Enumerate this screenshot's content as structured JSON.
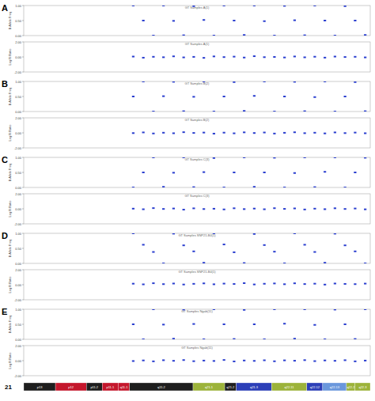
{
  "panel_labels": [
    "A",
    "B",
    "C",
    "D",
    "E"
  ],
  "chart_data": [
    {
      "type": "scatter",
      "title": "GT Samples A(1)",
      "y_label": "B Allele Freq",
      "color": "#2b3fcf",
      "marker": "dot",
      "xlim": [
        0,
        48.1
      ],
      "ylim": [
        0,
        1
      ],
      "yticks": [
        {
          "value": 0,
          "label": "0.00"
        },
        {
          "value": 0.5,
          "label": "0.50"
        },
        {
          "value": 1,
          "label": "1.00"
        }
      ],
      "tick_labels": "y",
      "x": [
        15.2,
        16.6,
        18.0,
        19.4,
        20.8,
        22.2,
        23.6,
        25.0,
        26.4,
        27.8,
        29.2,
        30.6,
        32.0,
        33.4,
        34.8,
        36.2,
        37.6,
        39.0,
        40.4,
        41.8,
        43.2,
        44.6,
        46.0,
        47.4
      ],
      "values": [
        1,
        0.5,
        0,
        1,
        0.49,
        0.01,
        0.98,
        0.52,
        0,
        1,
        0.5,
        0.02,
        1,
        0.48,
        0,
        0.99,
        0.51,
        0.01,
        1,
        0.5,
        0,
        0.98,
        0.5,
        0.02
      ]
    },
    {
      "type": "scatter",
      "title": "GT Samples A(1)",
      "y_label": "Log R Ratio",
      "color": "#2b3fcf",
      "marker": "dot",
      "xlim": [
        0,
        48.1
      ],
      "ylim": [
        -2,
        2
      ],
      "yticks": [
        {
          "value": -2,
          "label": "-2.00"
        },
        {
          "value": 0,
          "label": "0.00"
        },
        {
          "value": 2,
          "label": "2.00"
        }
      ],
      "tick_labels": "y",
      "x": [
        15.2,
        16.6,
        18.0,
        19.4,
        20.8,
        22.2,
        23.6,
        25.0,
        26.4,
        27.8,
        29.2,
        30.6,
        32.0,
        33.4,
        34.8,
        36.2,
        37.6,
        39.0,
        40.4,
        41.8,
        43.2,
        44.6,
        46.0,
        47.4
      ],
      "values": [
        0.05,
        -0.1,
        0.02,
        -0.04,
        0.08,
        -0.06,
        0.01,
        -0.12,
        0.07,
        -0.02,
        0.04,
        -0.08,
        0.1,
        -0.03,
        0,
        -0.07,
        0.06,
        -0.05,
        0.03,
        -0.09,
        0.05,
        -0.01,
        0.02,
        -0.06
      ]
    },
    {
      "type": "scatter",
      "title": "GT Samples B(2)",
      "y_label": "B Allele Freq",
      "color": "#2b3fcf",
      "marker": "dot",
      "xlim": [
        0,
        48.1
      ],
      "ylim": [
        0,
        1
      ],
      "yticks": [
        {
          "value": 0,
          "label": "0.00"
        },
        {
          "value": 0.5,
          "label": "0.50"
        },
        {
          "value": 1,
          "label": "1.00"
        }
      ],
      "tick_labels": "y",
      "x": [
        15.2,
        16.6,
        18.0,
        19.4,
        20.8,
        22.2,
        23.6,
        25.0,
        26.4,
        27.8,
        29.2,
        30.6,
        32.0,
        33.4,
        34.8,
        36.2,
        37.6,
        39.0,
        40.4,
        41.8,
        43.2,
        44.6,
        46.0,
        47.4
      ],
      "values": [
        0.5,
        1,
        0,
        0.51,
        0.99,
        0.01,
        0.49,
        1,
        0,
        0.5,
        0.98,
        0.02,
        0.52,
        1,
        0,
        0.5,
        0.99,
        0.01,
        0.48,
        1,
        0,
        0.5,
        0.98,
        0.01
      ]
    },
    {
      "type": "scatter",
      "title": "GT Samples B(2)",
      "y_label": "Log R Ratio",
      "color": "#2b3fcf",
      "marker": "dot",
      "xlim": [
        0,
        48.1
      ],
      "ylim": [
        -2,
        2
      ],
      "yticks": [
        {
          "value": -2,
          "label": "-2.00"
        },
        {
          "value": 0,
          "label": "0.00"
        },
        {
          "value": 2,
          "label": "2.00"
        }
      ],
      "tick_labels": "y",
      "x": [
        15.2,
        16.6,
        18.0,
        19.4,
        20.8,
        22.2,
        23.6,
        25.0,
        26.4,
        27.8,
        29.2,
        30.6,
        32.0,
        33.4,
        34.8,
        36.2,
        37.6,
        39.0,
        40.4,
        41.8,
        43.2,
        44.6,
        46.0,
        47.4
      ],
      "values": [
        -0.03,
        0.06,
        -0.08,
        0.02,
        -0.05,
        0.09,
        -0.01,
        0.04,
        -0.1,
        0.03,
        -0.06,
        0.07,
        -0.02,
        0.05,
        -0.09,
        0.01,
        0.08,
        -0.04,
        0.02,
        -0.07,
        0.06,
        -0.03,
        0.04,
        -0.05
      ]
    },
    {
      "type": "scatter",
      "title": "GT Samples C(3)",
      "y_label": "B Allele Freq",
      "color": "#2b3fcf",
      "marker": "dot",
      "xlim": [
        0,
        48.1
      ],
      "ylim": [
        0,
        1
      ],
      "yticks": [
        {
          "value": 0,
          "label": "0.00"
        },
        {
          "value": 0.5,
          "label": "0.50"
        },
        {
          "value": 1,
          "label": "1.00"
        }
      ],
      "tick_labels": "y",
      "x": [
        15.2,
        16.6,
        18.0,
        19.4,
        20.8,
        22.2,
        23.6,
        25.0,
        26.4,
        27.8,
        29.2,
        30.6,
        32.0,
        33.4,
        34.8,
        36.2,
        37.6,
        39.0,
        40.4,
        41.8,
        43.2,
        44.6,
        46.0,
        47.4
      ],
      "values": [
        0,
        0.5,
        1,
        0.02,
        0.49,
        1,
        0.01,
        0.51,
        0.98,
        0,
        0.5,
        1,
        0.02,
        0.5,
        0.99,
        0,
        0.48,
        1,
        0.01,
        0.52,
        1,
        0,
        0.5,
        0.99
      ]
    },
    {
      "type": "scatter",
      "title": "GT Samples C(3)",
      "y_label": "Log R Ratio",
      "color": "#2b3fcf",
      "marker": "dot",
      "xlim": [
        0,
        48.1
      ],
      "ylim": [
        -2,
        2
      ],
      "yticks": [
        {
          "value": -2,
          "label": "-2.00"
        },
        {
          "value": 0,
          "label": "0.00"
        },
        {
          "value": 2,
          "label": "2.00"
        }
      ],
      "tick_labels": "y",
      "x": [
        15.2,
        16.6,
        18.0,
        19.4,
        20.8,
        22.2,
        23.6,
        25.0,
        26.4,
        27.8,
        29.2,
        30.6,
        32.0,
        33.4,
        34.8,
        36.2,
        37.6,
        39.0,
        40.4,
        41.8,
        43.2,
        44.6,
        46.0,
        47.4
      ],
      "values": [
        0.02,
        -0.06,
        0.09,
        -0.02,
        0.04,
        -0.11,
        0.06,
        -0.03,
        0.01,
        -0.08,
        0.07,
        -0.04,
        0.03,
        -0.06,
        0.08,
        -0.01,
        0.05,
        -0.09,
        0.02,
        -0.05,
        0.07,
        -0.02,
        0.04,
        -0.07
      ]
    },
    {
      "type": "scatter",
      "title": "GT Samples SNP21-B4(1)",
      "y_label": "B Allele Freq",
      "color": "#2b3fcf",
      "marker": "dot",
      "xlim": [
        0,
        48.1
      ],
      "ylim": [
        0,
        1
      ],
      "yticks": [
        {
          "value": 0,
          "label": "0.00"
        },
        {
          "value": 0.5,
          "label": "0.50"
        },
        {
          "value": 1,
          "label": "1.00"
        }
      ],
      "tick_labels": "y",
      "x": [
        15.2,
        16.6,
        18.0,
        19.4,
        20.8,
        22.2,
        23.6,
        25.0,
        26.4,
        27.8,
        29.2,
        30.6,
        32.0,
        33.4,
        34.8,
        36.2,
        37.6,
        39.0,
        40.4,
        41.8,
        43.2,
        44.6,
        46.0,
        47.4
      ],
      "values": [
        1,
        0.62,
        0.38,
        0,
        0.99,
        0.6,
        0.4,
        0.02,
        1,
        0.63,
        0.37,
        0.01,
        0.98,
        0.61,
        0.39,
        0,
        1,
        0.62,
        0.38,
        0.02,
        0.99,
        0.6,
        0.4,
        0
      ]
    },
    {
      "type": "scatter",
      "title": "GT Samples SNP21-B4(1)",
      "y_label": "Log R Ratio",
      "color": "#2b3fcf",
      "marker": "dot",
      "xlim": [
        0,
        48.1
      ],
      "ylim": [
        -2,
        2
      ],
      "yticks": [
        {
          "value": -2,
          "label": "-2.00"
        },
        {
          "value": 0,
          "label": "0.00"
        },
        {
          "value": 2,
          "label": "2.00"
        }
      ],
      "tick_labels": "y",
      "x": [
        15.2,
        16.6,
        18.0,
        19.4,
        20.8,
        22.2,
        23.6,
        25.0,
        26.4,
        27.8,
        29.2,
        30.6,
        32.0,
        33.4,
        34.8,
        36.2,
        37.6,
        39.0,
        40.4,
        41.8,
        43.2,
        44.6,
        46.0,
        47.4
      ],
      "values": [
        0.14,
        0.05,
        0.2,
        0.08,
        0.16,
        0.03,
        0.12,
        0.18,
        0.06,
        0.15,
        0.1,
        0.21,
        0.04,
        0.13,
        0.17,
        0.07,
        0.19,
        0.09,
        0.14,
        0.02,
        0.16,
        0.11,
        0.08,
        0.15
      ]
    },
    {
      "type": "scatter",
      "title": "GT Samples Ngab(11)",
      "y_label": "B Allele Freq",
      "color": "#2b3fcf",
      "marker": "dot",
      "xlim": [
        0,
        48.1
      ],
      "ylim": [
        0,
        1
      ],
      "yticks": [
        {
          "value": 0,
          "label": "0.00"
        },
        {
          "value": 0.5,
          "label": "0.50"
        },
        {
          "value": 1,
          "label": "1.00"
        }
      ],
      "tick_labels": "y",
      "x": [
        15.2,
        16.6,
        18.0,
        19.4,
        20.8,
        22.2,
        23.6,
        25.0,
        26.4,
        27.8,
        29.2,
        30.6,
        32.0,
        33.4,
        34.8,
        36.2,
        37.6,
        39.0,
        40.4,
        41.8,
        43.2,
        44.6,
        46.0,
        47.4
      ],
      "values": [
        0.5,
        0,
        1,
        0.49,
        0.02,
        0.99,
        0.51,
        0,
        1,
        0.5,
        0.01,
        0.98,
        0.5,
        0,
        1,
        0.52,
        0.02,
        1,
        0.48,
        0,
        0.99,
        0.5,
        0.01,
        1
      ]
    },
    {
      "type": "scatter",
      "title": "GT Samples Ngab(11)",
      "y_label": "Log R Ratio",
      "color": "#2b3fcf",
      "marker": "dot",
      "xlim": [
        0,
        48.1
      ],
      "ylim": [
        -2,
        2
      ],
      "yticks": [
        {
          "value": -2,
          "label": "-2.00"
        },
        {
          "value": 0,
          "label": "0.00"
        },
        {
          "value": 2,
          "label": "2.00"
        }
      ],
      "tick_labels": "y",
      "x": [
        15.2,
        16.6,
        18.0,
        19.4,
        20.8,
        22.2,
        23.6,
        25.0,
        26.4,
        27.8,
        29.2,
        30.6,
        32.0,
        33.4,
        34.8,
        36.2,
        37.6,
        39.0,
        40.4,
        41.8,
        43.2,
        44.6,
        46.0,
        47.4
      ],
      "values": [
        -0.05,
        0.03,
        -0.09,
        0.06,
        -0.02,
        0.08,
        -0.07,
        0.01,
        -0.04,
        0.09,
        -0.1,
        0.02,
        -0.03,
        0.05,
        -0.08,
        0.04,
        -0.01,
        0.07,
        -0.06,
        0.03,
        -0.02,
        0.06,
        -0.09,
        0.01
      ]
    }
  ],
  "ideogram": {
    "chromosome": "21",
    "xlim": [
      0,
      48.1
    ],
    "bands": [
      {
        "name": "p13",
        "start": 0,
        "end": 4.4,
        "color": "#1e1e1e"
      },
      {
        "name": "p12",
        "start": 4.4,
        "end": 8.7,
        "color": "#c4172c"
      },
      {
        "name": "p11.2",
        "start": 8.7,
        "end": 10.9,
        "color": "#1e1e1e"
      },
      {
        "name": "p11.1",
        "start": 10.9,
        "end": 13.1,
        "color": "#c4172c"
      },
      {
        "name": "q11.1",
        "start": 13.1,
        "end": 14.7,
        "color": "#c4172c"
      },
      {
        "name": "q11.2",
        "start": 14.7,
        "end": 23.5,
        "color": "#1e1e1e"
      },
      {
        "name": "q21.1",
        "start": 23.5,
        "end": 27.9,
        "color": "#9cb33a"
      },
      {
        "name": "q21.2",
        "start": 27.9,
        "end": 29.5,
        "color": "#1e1e1e"
      },
      {
        "name": "q21.3",
        "start": 29.5,
        "end": 34.4,
        "color": "#2c3fb8"
      },
      {
        "name": "q22.11",
        "start": 34.4,
        "end": 39.3,
        "color": "#9cb33a"
      },
      {
        "name": "q22.12",
        "start": 39.3,
        "end": 41.5,
        "color": "#2c3fb8"
      },
      {
        "name": "q22.13",
        "start": 41.5,
        "end": 44.8,
        "color": "#6a97dc"
      },
      {
        "name": "q22.2",
        "start": 44.8,
        "end": 46.0,
        "color": "#9cb33a"
      },
      {
        "name": "q22.3",
        "start": 46.0,
        "end": 48.1,
        "color": "#9cb33a"
      }
    ]
  }
}
